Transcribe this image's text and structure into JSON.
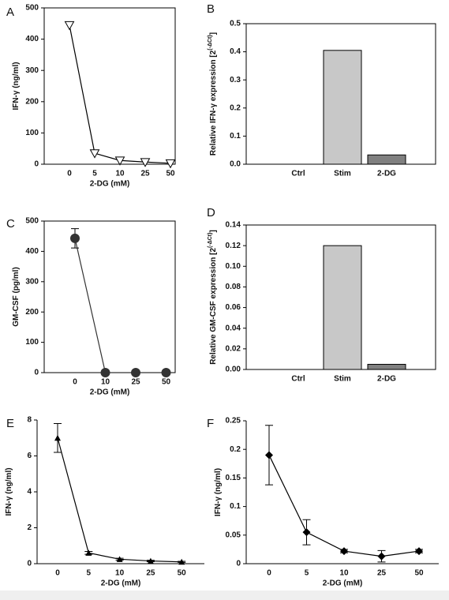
{
  "chart_data": [
    {
      "type": "line",
      "panel": "A",
      "ylabel": "IFN-γ (ng/ml)",
      "xlabel": "2-DG (mM)",
      "categories": [
        "0",
        "5",
        "10",
        "25",
        "50"
      ],
      "values": [
        445,
        35,
        12,
        7,
        3
      ],
      "marker": "triangle-down-open",
      "color": "#000000",
      "ylim": [
        0,
        500
      ],
      "yticks": [
        0,
        100,
        200,
        300,
        400,
        500
      ],
      "box": true
    },
    {
      "type": "bar",
      "panel": "B",
      "ylabel": "Relative IFN-γ expression [2",
      "ylabel_sup": "(-ΔCt)",
      "ylabel_end": "]",
      "categories": [
        "Ctrl",
        "Stim",
        "2-DG"
      ],
      "values": [
        0,
        0.405,
        0.033
      ],
      "colors": [
        "#c8c8c8",
        "#c8c8c8",
        "#808080"
      ],
      "ylim": [
        0,
        0.5
      ],
      "yticks": [
        {
          "value": 0,
          "label": "0.0"
        },
        0.1,
        0.2,
        0.3,
        0.4,
        0.5
      ],
      "box": true
    },
    {
      "type": "line",
      "panel": "C",
      "ylabel": "GM-CSF (pg/ml)",
      "xlabel": "2-DG (mM)",
      "categories": [
        "0",
        "10",
        "25",
        "50"
      ],
      "values": [
        443,
        0,
        0,
        0
      ],
      "errors": [
        32,
        0,
        0,
        0
      ],
      "marker": "circle",
      "color": "#333333",
      "ylim": [
        0,
        500
      ],
      "yticks": [
        0,
        100,
        200,
        300,
        400,
        500
      ],
      "box": true
    },
    {
      "type": "bar",
      "panel": "D",
      "ylabel": "Relative GM-CSF expression [2",
      "ylabel_sup": "(-ΔCt)",
      "ylabel_end": "]",
      "categories": [
        "Ctrl",
        "Stim",
        "2-DG"
      ],
      "values": [
        0,
        0.12,
        0.005
      ],
      "colors": [
        "#c8c8c8",
        "#c8c8c8",
        "#808080"
      ],
      "ylim": [
        0,
        0.14
      ],
      "yticks": [
        {
          "value": 0,
          "label": "0.00"
        },
        {
          "value": 0.02,
          "label": "0.02"
        },
        {
          "value": 0.04,
          "label": "0.04"
        },
        {
          "value": 0.06,
          "label": "0.06"
        },
        {
          "value": 0.08,
          "label": "0.08"
        },
        {
          "value": 0.1,
          "label": "0.10"
        },
        {
          "value": 0.12,
          "label": "0.12"
        },
        {
          "value": 0.14,
          "label": "0.14"
        }
      ],
      "box": true
    },
    {
      "type": "line",
      "panel": "E",
      "ylabel": "IFN-γ (ng/ml)",
      "xlabel": "2-DG (mM)",
      "categories": [
        "0",
        "5",
        "10",
        "25",
        "50"
      ],
      "values": [
        7.0,
        0.6,
        0.25,
        0.15,
        0.1
      ],
      "errors": [
        0.8,
        0.08,
        0.05,
        0.04,
        0.03
      ],
      "marker": "triangle-up",
      "color": "#000000",
      "ylim": [
        0,
        8
      ],
      "yticks": [
        0,
        2,
        4,
        6,
        8
      ],
      "box": false
    },
    {
      "type": "line",
      "panel": "F",
      "ylabel": "IFN-γ (ng/ml)",
      "xlabel": "2-DG (mM)",
      "categories": [
        "0",
        "5",
        "10",
        "25",
        "50"
      ],
      "values": [
        0.19,
        0.055,
        0.022,
        0.013,
        0.022
      ],
      "errors": [
        0.052,
        0.022,
        0.003,
        0.01,
        0.003
      ],
      "marker": "diamond",
      "color": "#000000",
      "ylim": [
        0,
        0.25
      ],
      "yticks": [
        0,
        0.05,
        0.1,
        0.15,
        0.2,
        0.25
      ],
      "box": false
    }
  ]
}
